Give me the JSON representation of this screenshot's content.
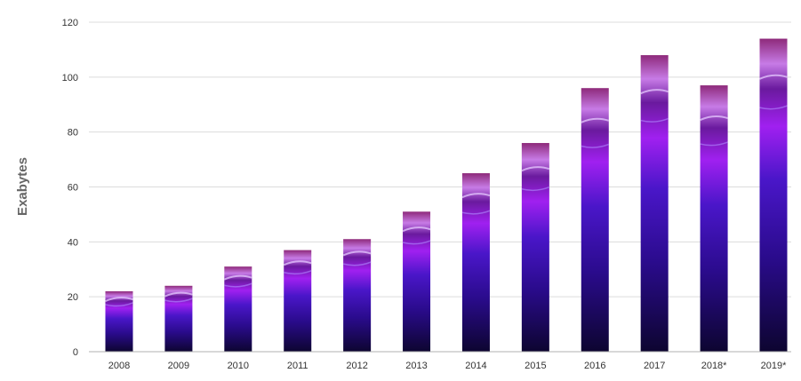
{
  "chart_data": {
    "type": "bar",
    "title": "",
    "xlabel": "",
    "ylabel": "Exabytes",
    "ylim": [
      0,
      120
    ],
    "yticks": [
      0,
      20,
      40,
      60,
      80,
      100,
      120
    ],
    "grid": true,
    "categories": [
      "2008",
      "2009",
      "2010",
      "2011",
      "2012",
      "2013",
      "2014",
      "2015",
      "2016",
      "2017",
      "2018*",
      "2019*"
    ],
    "values": [
      22,
      24,
      31,
      37,
      41,
      51,
      65,
      76,
      96,
      108,
      97,
      114
    ]
  },
  "colors": {
    "bar_bottom": "#0d0530",
    "bar_lower": "#2a0b8c",
    "bar_middle": "#4a16c9",
    "bar_upper": "#a020f0",
    "bar_top": "#c77be6",
    "gridline": "#dcdcdc",
    "axis": "#b0b0b0"
  }
}
